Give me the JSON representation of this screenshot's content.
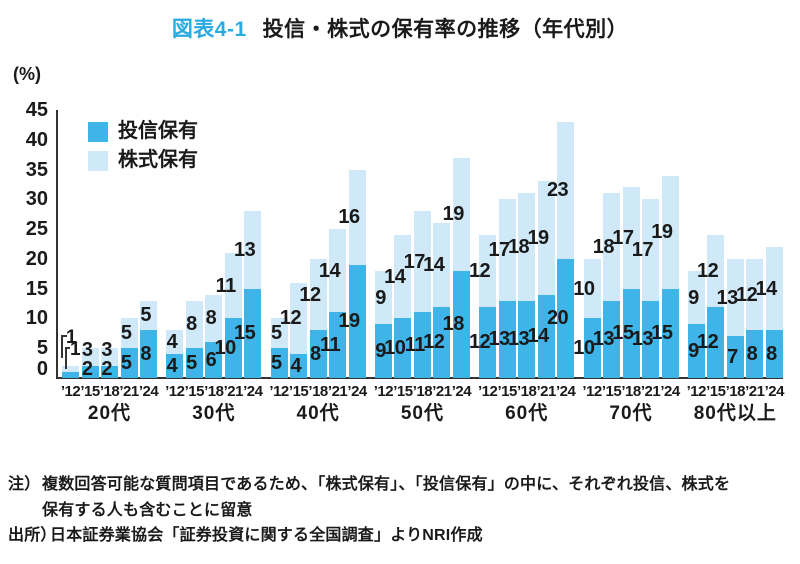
{
  "title": {
    "tag": "図表4-1",
    "text": "投信・株式の保有率の推移（年代別）"
  },
  "y_axis": {
    "unit_label": "(%)",
    "ticks": [
      45,
      40,
      35,
      30,
      25,
      20,
      15,
      10,
      5,
      0
    ]
  },
  "legend": [
    {
      "label": "投信保有",
      "color": "#3eb4e8"
    },
    {
      "label": "株式保有",
      "color": "#cfe9f8"
    }
  ],
  "chart_data": {
    "type": "bar",
    "stacked": true,
    "title": "投信・株式の保有率の推移（年代別）",
    "ylabel": "(%)",
    "ylim": [
      0,
      45
    ],
    "grid": false,
    "legend_position": "top-left-inside",
    "categories": [
      "20代",
      "30代",
      "40代",
      "50代",
      "60代",
      "70代",
      "80代以上"
    ],
    "years": [
      "’12",
      "’15",
      "’18",
      "’21",
      "’24"
    ],
    "series": [
      {
        "name": "投信保有",
        "color": "#3eb4e8",
        "values": [
          [
            1,
            2,
            2,
            5,
            8
          ],
          [
            4,
            5,
            6,
            10,
            15
          ],
          [
            5,
            4,
            8,
            11,
            19
          ],
          [
            9,
            10,
            11,
            12,
            18
          ],
          [
            12,
            13,
            13,
            14,
            20
          ],
          [
            10,
            13,
            15,
            13,
            15
          ],
          [
            9,
            12,
            7,
            8,
            8
          ]
        ]
      },
      {
        "name": "株式保有",
        "color": "#cfe9f8",
        "values": [
          [
            1,
            3,
            3,
            5,
            5
          ],
          [
            4,
            8,
            8,
            11,
            13
          ],
          [
            5,
            12,
            12,
            14,
            16
          ],
          [
            9,
            14,
            17,
            14,
            19
          ],
          [
            12,
            17,
            18,
            19,
            23
          ],
          [
            10,
            18,
            17,
            17,
            19
          ],
          [
            9,
            12,
            13,
            12,
            14
          ]
        ]
      }
    ]
  },
  "notes": {
    "note_label": "注）",
    "note_line1": "複数回答可能な質問項目であるため、「株式保有」、「投信保有」の中に、それぞれ投信、株式を",
    "note_line2": "保有する人も含むことに留意",
    "source_label": "出所）",
    "source_text": "日本証券業協会「証券投資に関する全国調査」よりNRI作成"
  },
  "colors": {
    "toushin": "#3eb4e8",
    "kabushiki": "#cfe9f8",
    "title_tag": "#29abe2",
    "axis": "#333333",
    "text": "#1a1a1a"
  }
}
